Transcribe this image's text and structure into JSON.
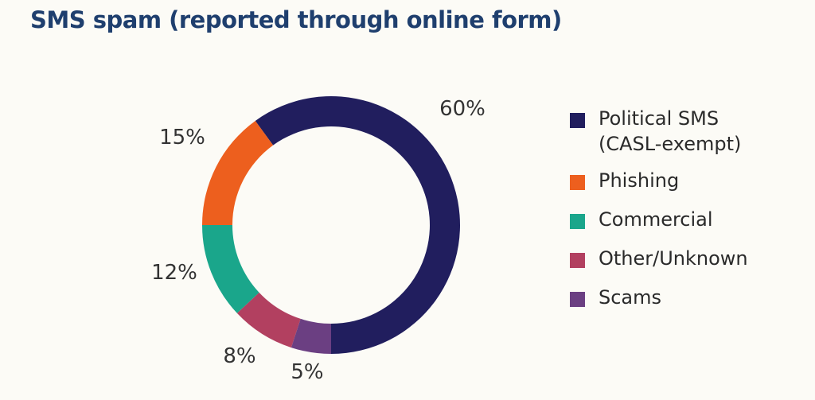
{
  "chart_data": {
    "type": "pie",
    "title": "SMS spam (reported through online form)",
    "categories": [
      "Political SMS (CASL-exempt)",
      "Phishing",
      "Commercial",
      "Other/Unknown",
      "Scams"
    ],
    "values": [
      60,
      15,
      12,
      8,
      5
    ],
    "labels": [
      "60%",
      "15%",
      "12%",
      "8%",
      "5%"
    ],
    "colors": [
      "#211e5e",
      "#ed5f1e",
      "#1aa68b",
      "#b24060",
      "#6b3f82"
    ],
    "legend_entries": [
      "Political SMS\n(CASL-exempt)",
      "Phishing",
      "Commercial",
      "Other/Unknown",
      "Scams"
    ],
    "legend_position": "right",
    "donut": true
  }
}
